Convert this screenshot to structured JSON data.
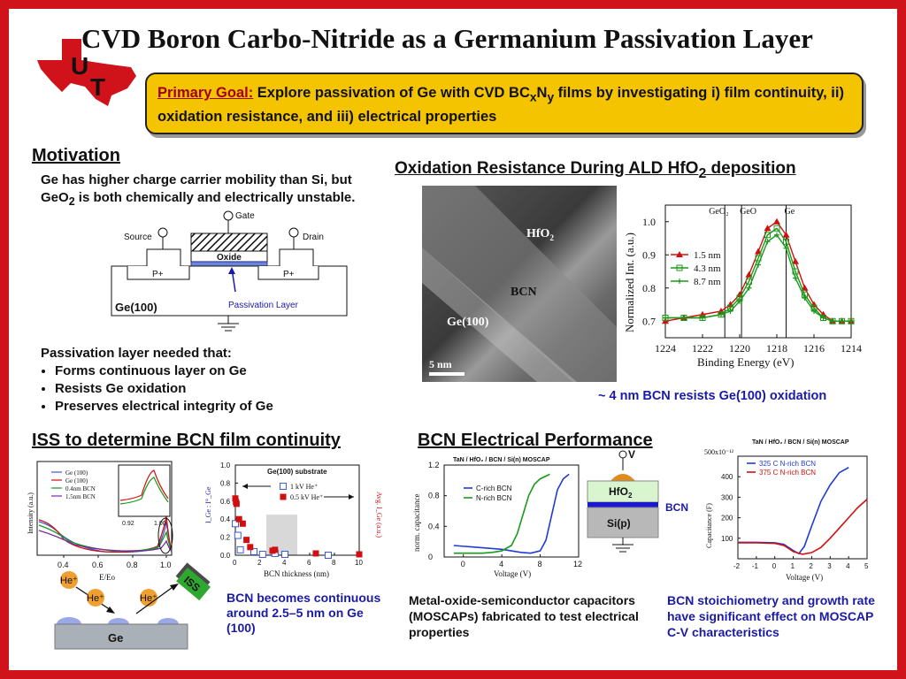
{
  "title": "CVD Boron Carbo-Nitride as a Germanium Passivation Layer",
  "logo": {
    "letters_1": "U",
    "letters_2": "T"
  },
  "primary_goal": {
    "label": "Primary Goal:",
    "text_a": " Explore passivation of Ge with CVD BC",
    "sub_x": "x",
    "text_b": "N",
    "sub_y": "y",
    "text_c": " films by investigating i) film continuity, ii) oxidation resistance, and iii) electrical properties"
  },
  "motivation": {
    "header": "Motivation",
    "line_a": "Ge has higher charge carrier mobility than Si, but GeO",
    "sub": "2",
    "line_b": " is both chemically and electrically unstable.",
    "diagram": {
      "gate": "Gate",
      "source": "Source",
      "drain": "Drain",
      "oxide": "Oxide",
      "p_left": "P+",
      "p_right": "P+",
      "substrate": "Ge(100)",
      "passivation": "Passivation Layer"
    },
    "needed_title": "Passivation layer needed that:",
    "bullets": [
      "Forms continuous layer on Ge",
      "Resists Ge oxidation",
      "Preserves electrical integrity of Ge"
    ]
  },
  "oxidation": {
    "header_a": "Oxidation Resistance During ALD HfO",
    "header_sub": "2",
    "header_b": " deposition",
    "tem": {
      "hfo2": "HfO",
      "hfo2_sub": "2",
      "bcn": "BCN",
      "ge": "Ge(100)",
      "scale": "5 nm"
    },
    "caption": "~ 4 nm BCN resists Ge(100) oxidation"
  },
  "iss": {
    "header": "ISS to determine BCN film continuity",
    "caption": "BCN becomes continuous around 2.5–5 nm on Ge (100)",
    "schematic": {
      "ion1": "He⁺",
      "ion2": "He⁺",
      "ion3": "He⁺",
      "detector": "ISS",
      "substrate": "Ge"
    }
  },
  "electrical": {
    "header": "BCN Electrical Performance",
    "stack": {
      "v": "V",
      "hfo2": "HfO",
      "hfo2_sub": "2",
      "bcn": "BCN",
      "si": "Si(p)"
    },
    "caption_left": "Metal-oxide-semiconductor capacitors (MOSCAPs) fabricated to test electrical properties",
    "caption_right": "BCN stoichiometry and growth rate have significant effect on MOSCAP C-V characteristics"
  },
  "chart_data": [
    {
      "type": "line",
      "xlabel": "Binding Energy (eV)",
      "ylabel": "Normalized Int. (a.u.)",
      "xlim": [
        1224,
        1214
      ],
      "ylim": [
        0.65,
        1.05
      ],
      "x_ticks": [
        "1224",
        "1222",
        "1220",
        "1218",
        "1216",
        "1214"
      ],
      "y_ticks": [
        "0.7",
        "0.8",
        "0.9",
        "1.0"
      ],
      "annotations": [
        "GeO₂",
        "GeO",
        "Ge"
      ],
      "annotation_x": [
        1220.8,
        1219.9,
        1217.5
      ],
      "x": [
        1224,
        1223,
        1222,
        1221,
        1220.5,
        1220,
        1219.5,
        1219,
        1218.5,
        1218,
        1217.5,
        1217,
        1216.5,
        1216,
        1215.5,
        1215,
        1214.5,
        1214
      ],
      "series": [
        {
          "name": "1.5 nm",
          "color": "#d01010",
          "marker": "triangle",
          "values": [
            0.7,
            0.71,
            0.72,
            0.73,
            0.75,
            0.78,
            0.84,
            0.91,
            0.98,
            1.0,
            0.96,
            0.88,
            0.8,
            0.75,
            0.72,
            0.7,
            0.7,
            0.7
          ]
        },
        {
          "name": "4.3 nm",
          "color": "#1a9a1a",
          "marker": "square",
          "values": [
            0.71,
            0.71,
            0.71,
            0.72,
            0.74,
            0.77,
            0.82,
            0.89,
            0.96,
            0.98,
            0.94,
            0.85,
            0.78,
            0.74,
            0.71,
            0.7,
            0.7,
            0.7
          ]
        },
        {
          "name": "8.7 nm",
          "color": "#1a9a1a",
          "marker": "plus",
          "values": [
            0.71,
            0.71,
            0.71,
            0.72,
            0.73,
            0.76,
            0.8,
            0.87,
            0.94,
            0.96,
            0.92,
            0.83,
            0.77,
            0.73,
            0.71,
            0.7,
            0.7,
            0.7
          ]
        }
      ]
    },
    {
      "type": "line",
      "xlabel": "E/Eo",
      "ylabel": "Intensity (a.u.)",
      "x_ticks": [
        "0.4",
        "0.6",
        "0.8",
        "1.0"
      ],
      "inset_ticks": [
        "0.92",
        "1.00"
      ],
      "series": [
        {
          "name": "Ge (100)",
          "color": "#3b5bd6"
        },
        {
          "name": "Ge (100)",
          "color": "#d01010"
        },
        {
          "name": "0.4nm BCN",
          "color": "#1a9a1a"
        },
        {
          "name": "1.5nm BCN",
          "color": "#7a2aa0"
        }
      ]
    },
    {
      "type": "scatter",
      "title": "Ge(100) substrate",
      "xlabel": "BCN thickness (nm)",
      "ylabel_left": "I_Ge : I°_Ge",
      "ylabel_right": "Avg. I_Ge (a.u.)",
      "xlim": [
        0,
        10
      ],
      "ylim": [
        0,
        1
      ],
      "x_ticks": [
        "0",
        "2",
        "4",
        "6",
        "8",
        "10"
      ],
      "y_ticks": [
        "0.0",
        "0.2",
        "0.4",
        "0.6",
        "0.8",
        "1.0"
      ],
      "shaded_range": [
        2.5,
        5
      ],
      "series": [
        {
          "name": "1 kV He⁺",
          "color": "#3b5bd6",
          "marker": "open-square",
          "x": [
            0,
            0.2,
            0.4,
            1.5,
            2.2,
            3.2,
            4,
            7.5
          ],
          "y": [
            0.35,
            0.22,
            0.06,
            0.04,
            0.01,
            0.02,
            0.01,
            0.0
          ]
        },
        {
          "name": "0.5 kV He⁺",
          "color": "#d01010",
          "marker": "filled-square",
          "x": [
            0,
            0.05,
            0.1,
            0.3,
            0.6,
            0.9,
            1.2,
            3,
            3.2,
            6.5,
            10
          ],
          "y": [
            0.63,
            0.59,
            0.57,
            0.4,
            0.35,
            0.17,
            0.09,
            0.05,
            0.06,
            0.02,
            0.01
          ]
        }
      ]
    },
    {
      "type": "line",
      "title": "TaN / HfO₂ / BCN / Si(n) MOSCAP",
      "xlabel": "Voltage (V)",
      "ylabel": "norm. capacitance",
      "xlim": [
        -2,
        12
      ],
      "ylim": [
        0,
        1.2
      ],
      "x_ticks": [
        "0",
        "4",
        "8",
        "12"
      ],
      "y_ticks": [
        "0",
        "0.4",
        "0.8",
        "1.2"
      ],
      "series": [
        {
          "name": "C-rich BCN",
          "color": "#1f3bd6",
          "x": [
            -1,
            0,
            1,
            2,
            3,
            4,
            5,
            6,
            7,
            8,
            8.6,
            9.2,
            9.8,
            10.4,
            11
          ],
          "y": [
            0.15,
            0.14,
            0.13,
            0.12,
            0.11,
            0.1,
            0.08,
            0.06,
            0.05,
            0.08,
            0.22,
            0.55,
            0.88,
            1.02,
            1.08
          ]
        },
        {
          "name": "N-rich BCN",
          "color": "#1a9a1a",
          "x": [
            -1,
            0,
            1,
            2,
            3,
            4,
            5,
            5.6,
            6.2,
            6.8,
            7.4,
            8,
            9
          ],
          "y": [
            0.05,
            0.05,
            0.05,
            0.05,
            0.06,
            0.08,
            0.15,
            0.3,
            0.55,
            0.8,
            0.95,
            1.02,
            1.08
          ]
        }
      ]
    },
    {
      "type": "line",
      "title": "TaN / HfO₂ / BCN / Si(n) MOSCAP",
      "xlabel": "Voltage (V)",
      "ylabel": "Capacitance (F)",
      "y_scale_label": "500x10⁻¹²",
      "xlim": [
        -2,
        5
      ],
      "ylim": [
        0,
        500
      ],
      "x_ticks": [
        "-2",
        "-1",
        "0",
        "1",
        "2",
        "3",
        "4",
        "5"
      ],
      "y_ticks": [
        "100",
        "200",
        "300",
        "400"
      ],
      "series": [
        {
          "name": "325 C N-rich BCN",
          "color": "#1f3bd6",
          "x": [
            -2,
            -1,
            0,
            0.5,
            1,
            1.3,
            1.6,
            2,
            2.5,
            3,
            3.5,
            4
          ],
          "y": [
            80,
            80,
            78,
            70,
            40,
            25,
            60,
            160,
            280,
            360,
            420,
            445
          ]
        },
        {
          "name": "375 C N-rich BCN",
          "color": "#d01010",
          "x": [
            -2,
            -1,
            0,
            0.5,
            1,
            1.5,
            2,
            2.5,
            3,
            3.5,
            4,
            4.5,
            5
          ],
          "y": [
            78,
            78,
            75,
            65,
            35,
            22,
            30,
            55,
            100,
            150,
            200,
            250,
            290
          ]
        }
      ]
    }
  ]
}
